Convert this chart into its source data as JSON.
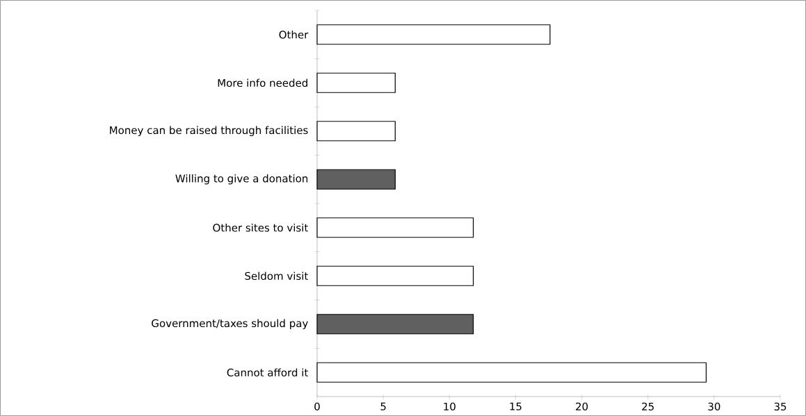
{
  "chart_data": {
    "type": "bar",
    "orientation": "horizontal",
    "categories": [
      "Other",
      "More info needed",
      "Money can be raised through facilities",
      "Willing to give a donation",
      "Other sites to visit",
      "Seldom visit",
      "Government/taxes should pay",
      "Cannot afford it"
    ],
    "values": [
      17.6,
      5.9,
      5.9,
      5.9,
      11.8,
      11.8,
      11.8,
      29.4
    ],
    "colors": [
      "#ffffff",
      "#ffffff",
      "#ffffff",
      "#606060",
      "#ffffff",
      "#ffffff",
      "#606060",
      "#ffffff"
    ],
    "xlim": [
      0,
      35
    ],
    "xticks": [
      0,
      5,
      10,
      15,
      20,
      25,
      30,
      35
    ],
    "grid": false
  }
}
